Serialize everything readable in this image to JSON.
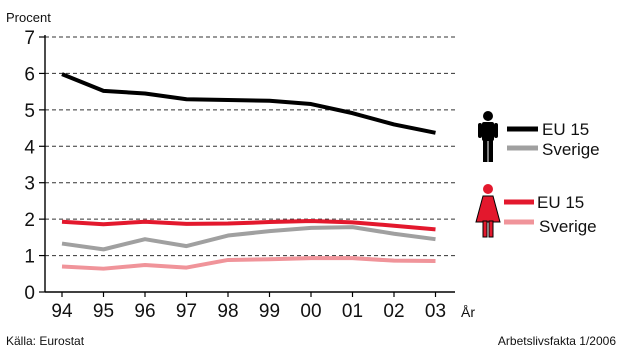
{
  "chart_data": {
    "type": "line",
    "ylabel": "Procent",
    "xlabel": "År",
    "categories": [
      "94",
      "95",
      "96",
      "97",
      "98",
      "99",
      "00",
      "01",
      "02",
      "03"
    ],
    "yticks": [
      0,
      1,
      2,
      3,
      4,
      5,
      6,
      7
    ],
    "ylim": [
      0,
      7
    ],
    "grid": "horizontal-dashed",
    "legend": {
      "men": [
        {
          "label": "EU 15",
          "color": "#000000"
        },
        {
          "label": "Sverige",
          "color": "#a0a0a0"
        }
      ],
      "women": [
        {
          "label": "EU 15",
          "color": "#e3182d"
        },
        {
          "label": "Sverige",
          "color": "#f0949a"
        }
      ]
    },
    "icons": {
      "men": "man-icon",
      "women": "woman-icon"
    },
    "series": [
      {
        "group": "men",
        "name": "EU 15",
        "color": "#000000",
        "values": [
          5.98,
          5.52,
          5.45,
          5.29,
          5.27,
          5.25,
          5.16,
          4.91,
          4.6,
          4.37
        ]
      },
      {
        "group": "men",
        "name": "Sverige",
        "color": "#a0a0a0",
        "values": [
          1.33,
          1.17,
          1.45,
          1.26,
          1.55,
          1.67,
          1.76,
          1.78,
          1.6,
          1.45
        ]
      },
      {
        "group": "women",
        "name": "EU 15",
        "color": "#e3182d",
        "values": [
          1.93,
          1.86,
          1.93,
          1.87,
          1.88,
          1.92,
          1.95,
          1.91,
          1.82,
          1.72
        ]
      },
      {
        "group": "women",
        "name": "Sverige",
        "color": "#f0949a",
        "values": [
          0.7,
          0.64,
          0.74,
          0.67,
          0.88,
          0.9,
          0.93,
          0.93,
          0.86,
          0.85
        ]
      }
    ]
  },
  "footer": {
    "source": "Källa: Eurostat",
    "credit": "Arbetslivsfakta 1/2006"
  }
}
